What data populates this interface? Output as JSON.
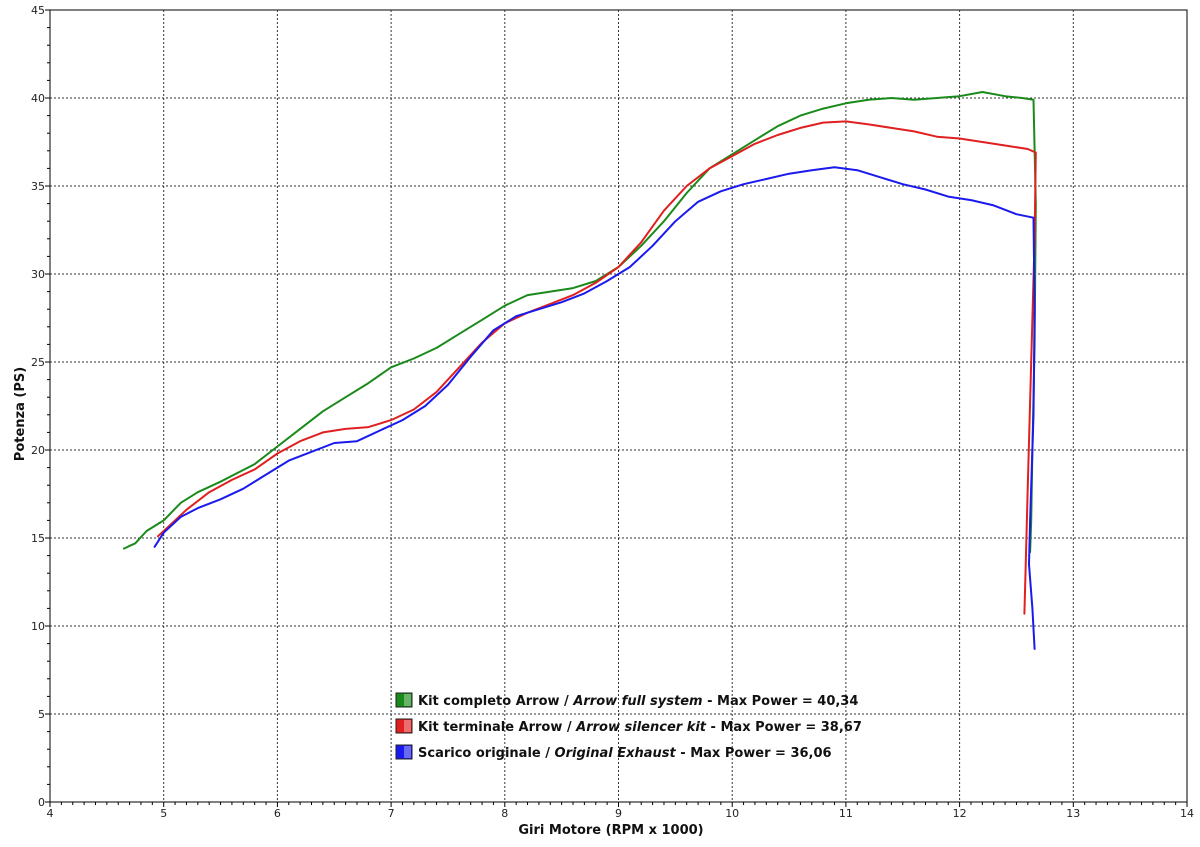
{
  "chart_data": {
    "type": "line",
    "title": "",
    "xlabel": "Giri Motore (RPM x 1000)",
    "ylabel": "Potenza (PS)",
    "xlim": [
      4,
      14
    ],
    "ylim": [
      0,
      45
    ],
    "xticks": [
      4,
      5,
      6,
      7,
      8,
      9,
      10,
      11,
      12,
      13,
      14
    ],
    "yticks": [
      0,
      5,
      10,
      15,
      20,
      25,
      30,
      35,
      40,
      45
    ],
    "grid": true,
    "legend_position": "bottom-center",
    "series": [
      {
        "name": "Kit completo Arrow / Arrow full system - Max Power = 40,34",
        "label_main": "Kit completo Arrow / ",
        "label_italic": "Arrow full system",
        "label_tail": " - Max Power = 40,34",
        "color": "#1a8a1a",
        "points": [
          [
            4.65,
            14.4
          ],
          [
            4.75,
            14.7
          ],
          [
            4.85,
            15.4
          ],
          [
            5.0,
            16.0
          ],
          [
            5.15,
            17.0
          ],
          [
            5.3,
            17.6
          ],
          [
            5.5,
            18.2
          ],
          [
            5.65,
            18.7
          ],
          [
            5.8,
            19.2
          ],
          [
            6.0,
            20.2
          ],
          [
            6.2,
            21.2
          ],
          [
            6.4,
            22.2
          ],
          [
            6.6,
            23.0
          ],
          [
            6.8,
            23.8
          ],
          [
            7.0,
            24.7
          ],
          [
            7.2,
            25.2
          ],
          [
            7.4,
            25.8
          ],
          [
            7.6,
            26.6
          ],
          [
            7.8,
            27.4
          ],
          [
            8.0,
            28.2
          ],
          [
            8.2,
            28.8
          ],
          [
            8.4,
            29.0
          ],
          [
            8.6,
            29.2
          ],
          [
            8.8,
            29.6
          ],
          [
            9.0,
            30.4
          ],
          [
            9.2,
            31.6
          ],
          [
            9.4,
            33.0
          ],
          [
            9.6,
            34.6
          ],
          [
            9.8,
            36.0
          ],
          [
            10.0,
            36.8
          ],
          [
            10.2,
            37.6
          ],
          [
            10.4,
            38.4
          ],
          [
            10.6,
            39.0
          ],
          [
            10.8,
            39.4
          ],
          [
            11.0,
            39.7
          ],
          [
            11.2,
            39.9
          ],
          [
            11.4,
            40.0
          ],
          [
            11.6,
            39.9
          ],
          [
            11.8,
            40.0
          ],
          [
            12.0,
            40.1
          ],
          [
            12.2,
            40.34
          ],
          [
            12.4,
            40.1
          ],
          [
            12.55,
            40.0
          ],
          [
            12.65,
            39.9
          ],
          [
            12.67,
            34.0
          ],
          [
            12.66,
            26.0
          ],
          [
            12.64,
            20.0
          ],
          [
            12.63,
            16.0
          ],
          [
            12.62,
            14.2
          ]
        ]
      },
      {
        "name": "Kit terminale Arrow / Arrow silencer kit - Max Power = 38,67",
        "label_main": "Kit terminale Arrow / ",
        "label_italic": "Arrow silencer kit",
        "label_tail": " - Max Power = 38,67",
        "color": "#e02020",
        "points": [
          [
            4.95,
            15.1
          ],
          [
            5.05,
            15.7
          ],
          [
            5.2,
            16.6
          ],
          [
            5.4,
            17.6
          ],
          [
            5.6,
            18.3
          ],
          [
            5.8,
            18.9
          ],
          [
            6.0,
            19.8
          ],
          [
            6.2,
            20.5
          ],
          [
            6.4,
            21.0
          ],
          [
            6.6,
            21.2
          ],
          [
            6.8,
            21.3
          ],
          [
            7.0,
            21.7
          ],
          [
            7.2,
            22.3
          ],
          [
            7.4,
            23.3
          ],
          [
            7.6,
            24.7
          ],
          [
            7.8,
            26.1
          ],
          [
            8.0,
            27.2
          ],
          [
            8.2,
            27.8
          ],
          [
            8.4,
            28.3
          ],
          [
            8.6,
            28.8
          ],
          [
            8.8,
            29.5
          ],
          [
            9.0,
            30.4
          ],
          [
            9.2,
            31.8
          ],
          [
            9.4,
            33.6
          ],
          [
            9.6,
            35.0
          ],
          [
            9.8,
            36.0
          ],
          [
            10.0,
            36.7
          ],
          [
            10.2,
            37.4
          ],
          [
            10.4,
            37.9
          ],
          [
            10.6,
            38.3
          ],
          [
            10.8,
            38.6
          ],
          [
            11.0,
            38.67
          ],
          [
            11.2,
            38.5
          ],
          [
            11.4,
            38.3
          ],
          [
            11.6,
            38.1
          ],
          [
            11.8,
            37.8
          ],
          [
            12.0,
            37.7
          ],
          [
            12.2,
            37.5
          ],
          [
            12.4,
            37.3
          ],
          [
            12.6,
            37.1
          ],
          [
            12.67,
            36.9
          ],
          [
            12.66,
            32.0
          ],
          [
            12.63,
            25.0
          ],
          [
            12.6,
            18.0
          ],
          [
            12.58,
            13.0
          ],
          [
            12.57,
            10.7
          ]
        ]
      },
      {
        "name": "Scarico originale / Original Exhaust - Max Power = 36,06",
        "label_main": "Scarico originale / ",
        "label_italic": "Original Exhaust",
        "label_tail": " - Max Power = 36,06",
        "color": "#1a1aee",
        "points": [
          [
            4.92,
            14.5
          ],
          [
            5.0,
            15.3
          ],
          [
            5.15,
            16.2
          ],
          [
            5.3,
            16.7
          ],
          [
            5.5,
            17.2
          ],
          [
            5.7,
            17.8
          ],
          [
            5.9,
            18.6
          ],
          [
            6.1,
            19.4
          ],
          [
            6.3,
            19.9
          ],
          [
            6.5,
            20.4
          ],
          [
            6.7,
            20.5
          ],
          [
            6.9,
            21.1
          ],
          [
            7.1,
            21.7
          ],
          [
            7.3,
            22.5
          ],
          [
            7.5,
            23.7
          ],
          [
            7.7,
            25.3
          ],
          [
            7.9,
            26.8
          ],
          [
            8.1,
            27.6
          ],
          [
            8.3,
            28.0
          ],
          [
            8.5,
            28.4
          ],
          [
            8.7,
            28.9
          ],
          [
            8.9,
            29.6
          ],
          [
            9.1,
            30.4
          ],
          [
            9.3,
            31.6
          ],
          [
            9.5,
            33.0
          ],
          [
            9.7,
            34.1
          ],
          [
            9.9,
            34.7
          ],
          [
            10.1,
            35.1
          ],
          [
            10.3,
            35.4
          ],
          [
            10.5,
            35.7
          ],
          [
            10.7,
            35.9
          ],
          [
            10.9,
            36.06
          ],
          [
            11.1,
            35.9
          ],
          [
            11.3,
            35.5
          ],
          [
            11.5,
            35.1
          ],
          [
            11.7,
            34.8
          ],
          [
            11.9,
            34.4
          ],
          [
            12.1,
            34.2
          ],
          [
            12.3,
            33.9
          ],
          [
            12.5,
            33.4
          ],
          [
            12.65,
            33.2
          ],
          [
            12.66,
            28.0
          ],
          [
            12.65,
            22.0
          ],
          [
            12.62,
            16.0
          ],
          [
            12.61,
            13.5
          ],
          [
            12.64,
            11.0
          ],
          [
            12.66,
            8.7
          ]
        ]
      }
    ]
  }
}
